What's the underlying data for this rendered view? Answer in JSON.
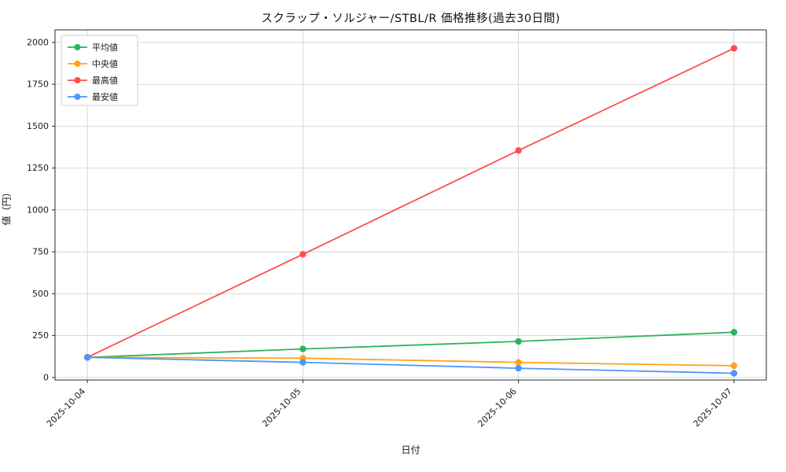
{
  "chart_data": {
    "type": "line",
    "title": "スクラップ・ソルジャー/STBL/R 価格推移(過去30日間)",
    "xlabel": "日付",
    "ylabel": "値（円）",
    "categories": [
      "2025-10-04",
      "2025-10-05",
      "2025-10-06",
      "2025-10-07"
    ],
    "series": [
      {
        "name": "平均値",
        "color": "#2db360",
        "values": [
          120,
          170,
          215,
          270
        ]
      },
      {
        "name": "中央値",
        "color": "#ffa31a",
        "values": [
          120,
          115,
          90,
          70
        ]
      },
      {
        "name": "最高値",
        "color": "#ff4d4d",
        "values": [
          120,
          735,
          1355,
          1965
        ]
      },
      {
        "name": "最安値",
        "color": "#4d96ff",
        "values": [
          120,
          90,
          55,
          25
        ]
      }
    ],
    "yticks": [
      0,
      250,
      500,
      750,
      1000,
      1250,
      1500,
      1750,
      2000
    ],
    "ylim": [
      -15,
      2075
    ],
    "grid": true,
    "legend_position": "top-left",
    "colors": {
      "grid": "#d2d2d2",
      "spine": "#2b2b2b",
      "legend_border": "#cccccc",
      "background": "#ffffff"
    }
  }
}
